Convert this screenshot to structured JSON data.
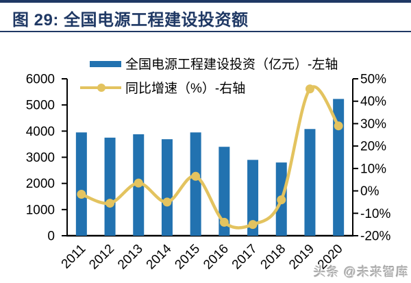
{
  "header": {
    "title": "图 29: 全国电源工程建设投资额"
  },
  "watermark": "头条 @未来智库",
  "colors": {
    "navy": "#1F3864",
    "bar": "#2272B0",
    "line": "#E3C35F",
    "axis": "#000000",
    "label_text": "#000000",
    "watermark_gray": "#B7B7B7"
  },
  "chart_data": {
    "type": "bar",
    "subtype": "bar-plus-line-dual-axis",
    "title": "全国电源工程建设投资额",
    "categories": [
      "2011",
      "2012",
      "2013",
      "2014",
      "2015",
      "2016",
      "2017",
      "2018",
      "2019",
      "2020"
    ],
    "series": [
      {
        "name": "全国电源工程建设投资（亿元）-左轴",
        "type": "bar",
        "axis": "left",
        "color": "#2272B0",
        "values": [
          3950,
          3750,
          3880,
          3690,
          3950,
          3400,
          2900,
          2800,
          4080,
          5230
        ]
      },
      {
        "name": "同比增速（%）-右轴",
        "type": "line",
        "axis": "right",
        "color": "#E3C35F",
        "values": [
          -1.5,
          -5.5,
          3.5,
          -5,
          6.5,
          -14,
          -15,
          -4,
          45.5,
          29
        ]
      }
    ],
    "left_axis": {
      "min": 0,
      "max": 6000,
      "step": 1000,
      "ticks": [
        "0",
        "1000",
        "2000",
        "3000",
        "4000",
        "5000",
        "6000"
      ]
    },
    "right_axis": {
      "min": -20,
      "max": 50,
      "step": 10,
      "ticks": [
        "-20%",
        "-10%",
        "0%",
        "10%",
        "20%",
        "30%",
        "40%",
        "50%"
      ]
    },
    "legend_position": "top-center",
    "grid": false,
    "smooth_line": true
  }
}
